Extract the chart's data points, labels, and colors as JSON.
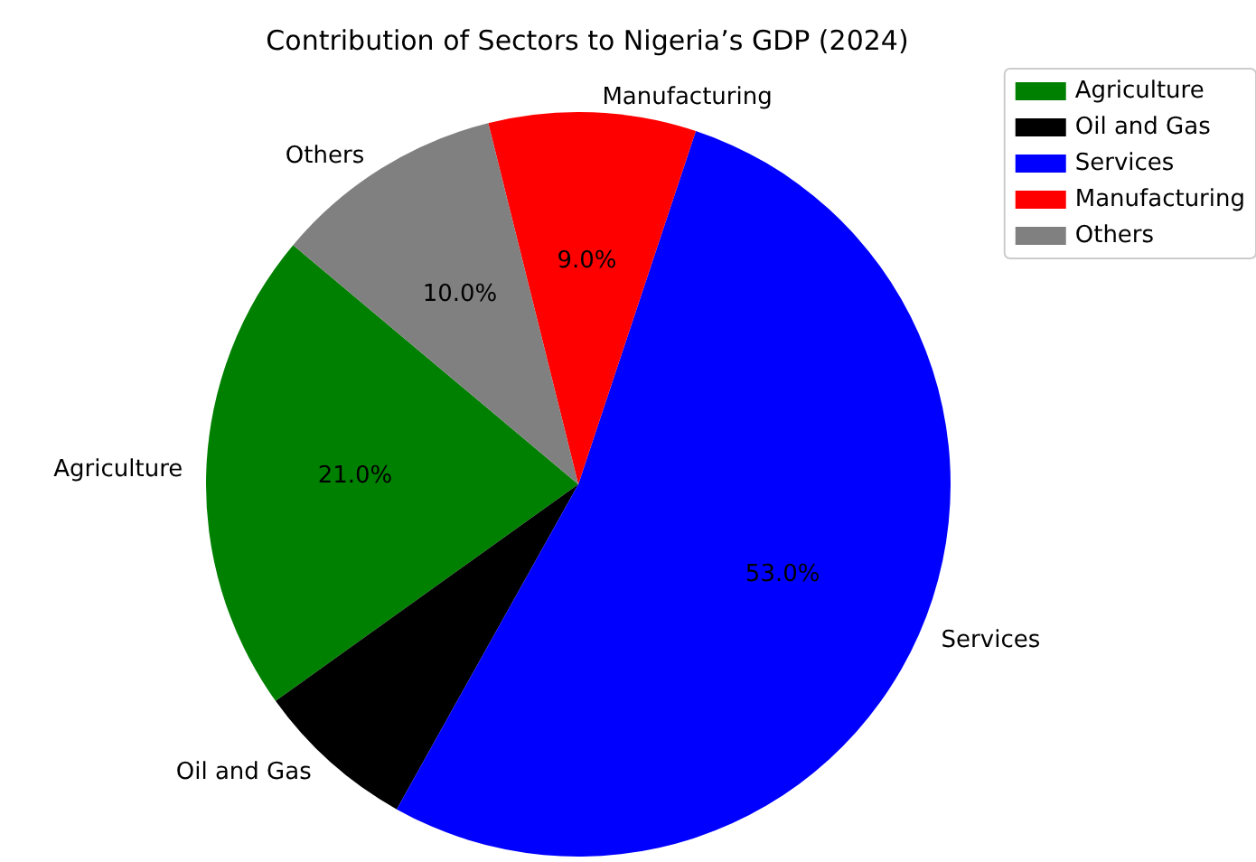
{
  "chart_data": {
    "type": "pie",
    "title": "Contribution of Sectors to Nigeria’s GDP (2024)",
    "categories": [
      "Agriculture",
      "Oil and Gas",
      "Services",
      "Manufacturing",
      "Others"
    ],
    "values": [
      21,
      7,
      53,
      9,
      10
    ],
    "colors": [
      "#008000",
      "#000000",
      "#0000ff",
      "#ff0000",
      "#808080"
    ],
    "value_labels": [
      "21.0%",
      null,
      "53.0%",
      "9.0%",
      "10.0%"
    ],
    "legend": "top right"
  }
}
